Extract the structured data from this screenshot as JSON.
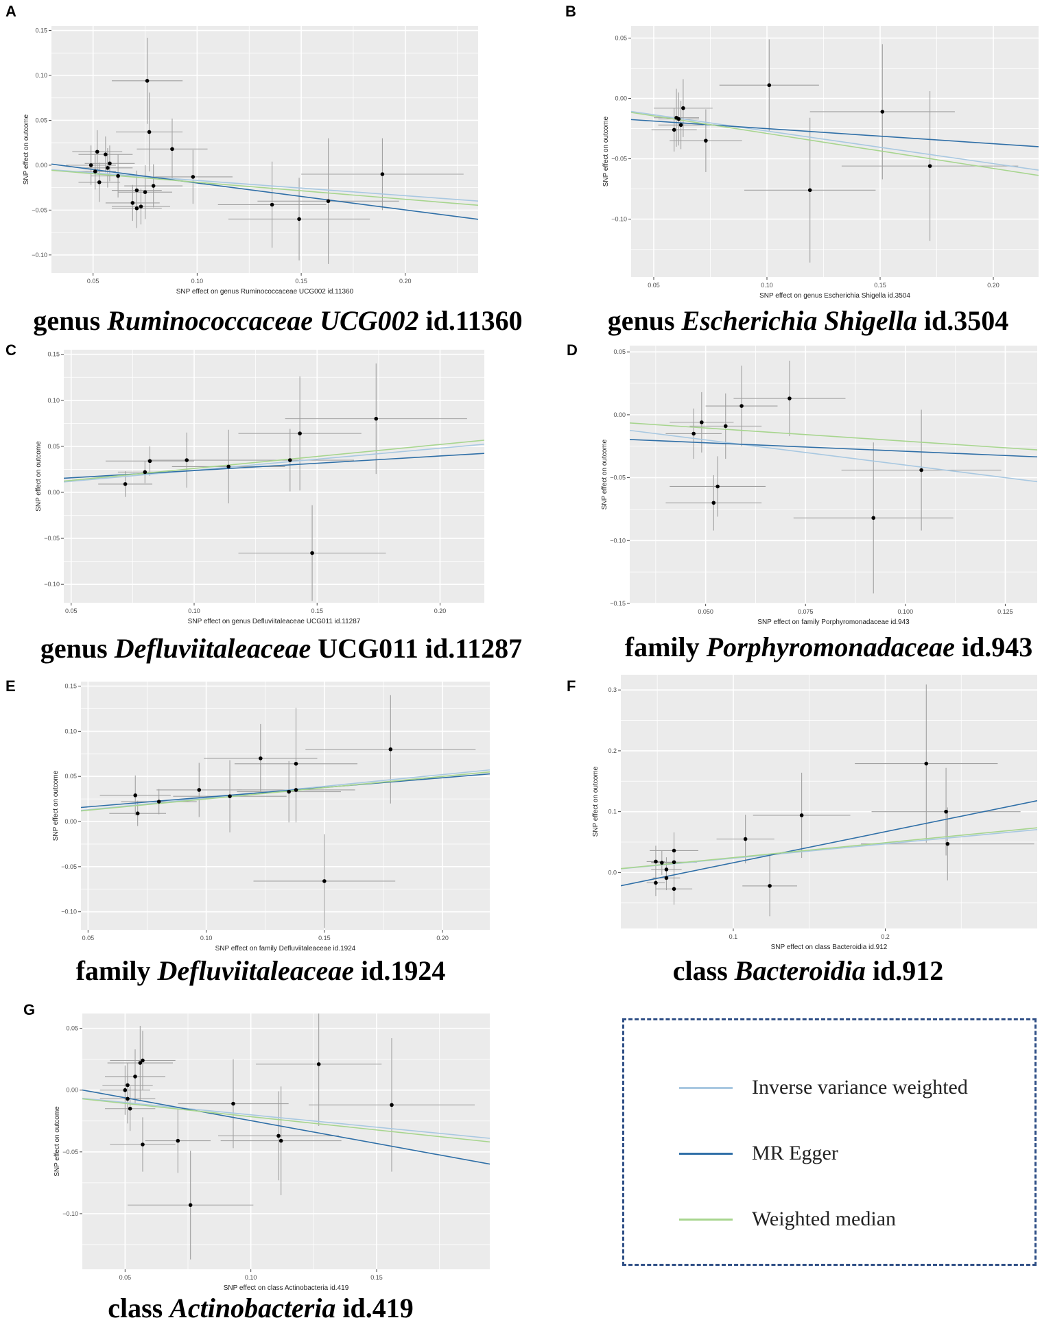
{
  "colors": {
    "ivw": "#a8c8e1",
    "egger": "#2f6fa7",
    "median": "#a7d58e",
    "panel_bg": "#ebebeb",
    "grid": "#ffffff",
    "legend_border": "#2f4f86"
  },
  "legend": {
    "items": [
      {
        "name": "Inverse variance weighted",
        "color_key": "ivw"
      },
      {
        "name": "MR Egger",
        "color_key": "egger"
      },
      {
        "name": "Weighted median",
        "color_key": "median"
      }
    ]
  },
  "chart_data": [
    {
      "id": "A",
      "type": "scatter",
      "caption": {
        "pre": "genus ",
        "ital": "Ruminococcaceae UCG002",
        "post": " id.11360"
      },
      "xlabel": "SNP effect on genus Ruminococcaceae UCG002 id.11360",
      "ylabel": "SNP effect on outcome",
      "xlim": [
        0.03,
        0.235
      ],
      "ylim": [
        -0.12,
        0.155
      ],
      "xticks": [
        0.05,
        0.1,
        0.15,
        0.2
      ],
      "xticklabels": [
        "0.05",
        "0.10",
        "0.15",
        "0.20"
      ],
      "yticks": [
        -0.1,
        -0.05,
        0.0,
        0.05,
        0.1,
        0.15
      ],
      "yticklabels": [
        "−0.10",
        "−0.05",
        "0.00",
        "0.05",
        "0.10",
        "0.15"
      ],
      "points": [
        {
          "x": 0.049,
          "y": 0.0,
          "xe": 0.012,
          "ye": 0.022
        },
        {
          "x": 0.051,
          "y": -0.007,
          "xe": 0.01,
          "ye": 0.02
        },
        {
          "x": 0.052,
          "y": 0.015,
          "xe": 0.012,
          "ye": 0.024
        },
        {
          "x": 0.053,
          "y": -0.019,
          "xe": 0.01,
          "ye": 0.022
        },
        {
          "x": 0.056,
          "y": 0.012,
          "xe": 0.013,
          "ye": 0.02
        },
        {
          "x": 0.057,
          "y": -0.003,
          "xe": 0.012,
          "ye": 0.022
        },
        {
          "x": 0.058,
          "y": 0.002,
          "xe": 0.012,
          "ye": 0.02
        },
        {
          "x": 0.062,
          "y": -0.012,
          "xe": 0.013,
          "ye": 0.024
        },
        {
          "x": 0.069,
          "y": -0.042,
          "xe": 0.013,
          "ye": 0.02
        },
        {
          "x": 0.071,
          "y": -0.028,
          "xe": 0.012,
          "ye": 0.022
        },
        {
          "x": 0.071,
          "y": -0.048,
          "xe": 0.012,
          "ye": 0.022
        },
        {
          "x": 0.073,
          "y": -0.046,
          "xe": 0.014,
          "ye": 0.02
        },
        {
          "x": 0.075,
          "y": -0.03,
          "xe": 0.013,
          "ye": 0.03
        },
        {
          "x": 0.076,
          "y": 0.094,
          "xe": 0.017,
          "ye": 0.048
        },
        {
          "x": 0.077,
          "y": 0.037,
          "xe": 0.016,
          "ye": 0.044
        },
        {
          "x": 0.079,
          "y": -0.023,
          "xe": 0.014,
          "ye": 0.024
        },
        {
          "x": 0.088,
          "y": 0.018,
          "xe": 0.017,
          "ye": 0.034
        },
        {
          "x": 0.098,
          "y": -0.013,
          "xe": 0.019,
          "ye": 0.03
        },
        {
          "x": 0.136,
          "y": -0.044,
          "xe": 0.026,
          "ye": 0.048
        },
        {
          "x": 0.149,
          "y": -0.06,
          "xe": 0.034,
          "ye": 0.046
        },
        {
          "x": 0.163,
          "y": -0.04,
          "xe": 0.034,
          "ye": 0.07
        },
        {
          "x": 0.189,
          "y": -0.01,
          "xe": 0.039,
          "ye": 0.04
        }
      ],
      "lines": [
        {
          "method": "ivw",
          "intercept": 0.0,
          "slope": -0.17
        },
        {
          "method": "egger",
          "intercept": 0.0102,
          "slope": -0.3
        },
        {
          "method": "median",
          "intercept": 0.0,
          "slope": -0.19
        }
      ]
    },
    {
      "id": "B",
      "type": "scatter",
      "caption": {
        "pre": "genus ",
        "ital": "Escherichia Shigella",
        "post": " id.3504"
      },
      "xlabel": "SNP effect on genus Escherichia Shigella id.3504",
      "ylabel": "SNP effect on outcome",
      "xlim": [
        0.04,
        0.22
      ],
      "ylim": [
        -0.148,
        0.06
      ],
      "xticks": [
        0.05,
        0.1,
        0.15,
        0.2
      ],
      "xticklabels": [
        "0.05",
        "0.10",
        "0.15",
        "0.20"
      ],
      "yticks": [
        -0.1,
        -0.05,
        0.0,
        0.05
      ],
      "yticklabels": [
        "−0.10",
        "−0.05",
        "0.00",
        "0.05"
      ],
      "points": [
        {
          "x": 0.059,
          "y": -0.026,
          "xe": 0.01,
          "ye": 0.018
        },
        {
          "x": 0.06,
          "y": -0.016,
          "xe": 0.01,
          "ye": 0.024
        },
        {
          "x": 0.061,
          "y": -0.017,
          "xe": 0.009,
          "ye": 0.022
        },
        {
          "x": 0.062,
          "y": -0.022,
          "xe": 0.01,
          "ye": 0.02
        },
        {
          "x": 0.063,
          "y": -0.008,
          "xe": 0.013,
          "ye": 0.024
        },
        {
          "x": 0.073,
          "y": -0.035,
          "xe": 0.016,
          "ye": 0.026
        },
        {
          "x": 0.101,
          "y": 0.011,
          "xe": 0.022,
          "ye": 0.038
        },
        {
          "x": 0.119,
          "y": -0.076,
          "xe": 0.029,
          "ye": 0.06
        },
        {
          "x": 0.151,
          "y": -0.011,
          "xe": 0.032,
          "ye": 0.056
        },
        {
          "x": 0.172,
          "y": -0.056,
          "xe": 0.039,
          "ye": 0.062
        }
      ],
      "lines": [
        {
          "method": "ivw",
          "intercept": 0.0,
          "slope": -0.27
        },
        {
          "method": "egger",
          "intercept": -0.0125,
          "slope": -0.125
        },
        {
          "method": "median",
          "intercept": 0.0,
          "slope": -0.29
        }
      ]
    },
    {
      "id": "C",
      "type": "scatter",
      "caption": {
        "pre": "genus ",
        "ital": "Defluviitaleaceae",
        "post": " UCG011 id.11287"
      },
      "xlabel": "SNP effect on genus Defluviitaleaceae UCG011 id.11287",
      "ylabel": "SNP effect on outcome",
      "xlim": [
        0.047,
        0.218
      ],
      "ylim": [
        -0.12,
        0.155
      ],
      "xticks": [
        0.05,
        0.1,
        0.15,
        0.2
      ],
      "xticklabels": [
        "0.05",
        "0.10",
        "0.15",
        "0.20"
      ],
      "yticks": [
        -0.1,
        -0.05,
        0.0,
        0.05,
        0.1,
        0.15
      ],
      "yticklabels": [
        "−0.10",
        "−0.05",
        "0.00",
        "0.05",
        "0.10",
        "0.15"
      ],
      "points": [
        {
          "x": 0.072,
          "y": 0.009,
          "xe": 0.011,
          "ye": 0.014
        },
        {
          "x": 0.08,
          "y": 0.022,
          "xe": 0.011,
          "ye": 0.012
        },
        {
          "x": 0.082,
          "y": 0.034,
          "xe": 0.018,
          "ye": 0.016
        },
        {
          "x": 0.097,
          "y": 0.035,
          "xe": 0.016,
          "ye": 0.03
        },
        {
          "x": 0.114,
          "y": 0.028,
          "xe": 0.023,
          "ye": 0.04
        },
        {
          "x": 0.139,
          "y": 0.035,
          "xe": 0.026,
          "ye": 0.034
        },
        {
          "x": 0.143,
          "y": 0.064,
          "xe": 0.025,
          "ye": 0.062
        },
        {
          "x": 0.148,
          "y": -0.066,
          "xe": 0.03,
          "ye": 0.052
        },
        {
          "x": 0.174,
          "y": 0.08,
          "xe": 0.037,
          "ye": 0.06
        }
      ],
      "lines": [
        {
          "method": "ivw",
          "intercept": 0.0,
          "slope": 0.24
        },
        {
          "method": "egger",
          "intercept": 0.0079,
          "slope": 0.158
        },
        {
          "method": "median",
          "intercept": 0.0,
          "slope": 0.26
        }
      ]
    },
    {
      "id": "D",
      "type": "scatter",
      "caption": {
        "pre": "family ",
        "ital": "Porphyromonadaceae",
        "post": " id.943"
      },
      "xlabel": "SNP effect on family Porphyromonadaceae id.943",
      "ylabel": "SNP effect on outcome",
      "xlim": [
        0.031,
        0.133
      ],
      "ylim": [
        -0.15,
        0.055
      ],
      "xticks": [
        0.05,
        0.075,
        0.1,
        0.125
      ],
      "xticklabels": [
        "0.050",
        "0.075",
        "0.100",
        "0.125"
      ],
      "yticks": [
        -0.15,
        -0.1,
        -0.05,
        0.0,
        0.05
      ],
      "yticklabels": [
        "−0.15",
        "−0.10",
        "−0.05",
        "0.00",
        "0.05"
      ],
      "points": [
        {
          "x": 0.047,
          "y": -0.015,
          "xe": 0.007,
          "ye": 0.02
        },
        {
          "x": 0.049,
          "y": -0.006,
          "xe": 0.008,
          "ye": 0.024
        },
        {
          "x": 0.052,
          "y": -0.07,
          "xe": 0.012,
          "ye": 0.022
        },
        {
          "x": 0.053,
          "y": -0.057,
          "xe": 0.012,
          "ye": 0.024
        },
        {
          "x": 0.055,
          "y": -0.009,
          "xe": 0.009,
          "ye": 0.026
        },
        {
          "x": 0.059,
          "y": 0.007,
          "xe": 0.009,
          "ye": 0.032
        },
        {
          "x": 0.071,
          "y": 0.013,
          "xe": 0.014,
          "ye": 0.03
        },
        {
          "x": 0.092,
          "y": -0.082,
          "xe": 0.02,
          "ye": 0.06
        },
        {
          "x": 0.104,
          "y": -0.044,
          "xe": 0.02,
          "ye": 0.048
        }
      ],
      "lines": [
        {
          "method": "ivw",
          "intercept": 0.0,
          "slope": -0.4
        },
        {
          "method": "egger",
          "intercept": -0.0155,
          "slope": -0.135
        },
        {
          "method": "median",
          "intercept": 0.0,
          "slope": -0.21
        }
      ]
    },
    {
      "id": "E",
      "type": "scatter",
      "caption": {
        "pre": "family ",
        "ital": "Defluviitaleaceae",
        "post": " id.1924"
      },
      "xlabel": "SNP effect on family Defluviitaleaceae id.1924",
      "ylabel": "SNP effect on outcome",
      "xlim": [
        0.047,
        0.22
      ],
      "ylim": [
        -0.12,
        0.155
      ],
      "xticks": [
        0.05,
        0.1,
        0.15,
        0.2
      ],
      "xticklabels": [
        "0.05",
        "0.10",
        "0.15",
        "0.20"
      ],
      "yticks": [
        -0.1,
        -0.05,
        0.0,
        0.05,
        0.1,
        0.15
      ],
      "yticklabels": [
        "−0.10",
        "−0.05",
        "0.00",
        "0.05",
        "0.10",
        "0.15"
      ],
      "points": [
        {
          "x": 0.07,
          "y": 0.029,
          "xe": 0.015,
          "ye": 0.022
        },
        {
          "x": 0.071,
          "y": 0.009,
          "xe": 0.012,
          "ye": 0.014
        },
        {
          "x": 0.08,
          "y": 0.022,
          "xe": 0.016,
          "ye": 0.014
        },
        {
          "x": 0.097,
          "y": 0.035,
          "xe": 0.018,
          "ye": 0.03
        },
        {
          "x": 0.11,
          "y": 0.028,
          "xe": 0.024,
          "ye": 0.04
        },
        {
          "x": 0.123,
          "y": 0.07,
          "xe": 0.024,
          "ye": 0.038
        },
        {
          "x": 0.135,
          "y": 0.033,
          "xe": 0.022,
          "ye": 0.034
        },
        {
          "x": 0.138,
          "y": 0.064,
          "xe": 0.026,
          "ye": 0.062
        },
        {
          "x": 0.138,
          "y": 0.035,
          "xe": 0.025,
          "ye": 0.036
        },
        {
          "x": 0.15,
          "y": -0.066,
          "xe": 0.03,
          "ye": 0.052
        },
        {
          "x": 0.178,
          "y": 0.08,
          "xe": 0.036,
          "ye": 0.06
        }
      ],
      "lines": [
        {
          "method": "ivw",
          "intercept": 0.0,
          "slope": 0.26
        },
        {
          "method": "egger",
          "intercept": 0.0055,
          "slope": 0.215
        },
        {
          "method": "median",
          "intercept": 0.0,
          "slope": 0.25
        }
      ]
    },
    {
      "id": "F",
      "type": "scatter",
      "caption": {
        "pre": "class ",
        "ital": "Bacteroidia",
        "post": " id.912"
      },
      "xlabel": "SNP effect on class Bacteroidia id.912",
      "ylabel": "SNP effect on outcome",
      "xlim": [
        0.026,
        0.3
      ],
      "ylim": [
        -0.092,
        0.325
      ],
      "xticks": [
        0.1,
        0.2
      ],
      "xticklabels": [
        "0.1",
        "0.2"
      ],
      "yticks": [
        0.0,
        0.1,
        0.2,
        0.3
      ],
      "yticklabels": [
        "0.0",
        "0.1",
        "0.2",
        "0.3"
      ],
      "points": [
        {
          "x": 0.049,
          "y": 0.018,
          "xe": 0.006,
          "ye": 0.026
        },
        {
          "x": 0.049,
          "y": -0.017,
          "xe": 0.006,
          "ye": 0.022
        },
        {
          "x": 0.053,
          "y": 0.016,
          "xe": 0.007,
          "ye": 0.02
        },
        {
          "x": 0.056,
          "y": 0.005,
          "xe": 0.01,
          "ye": 0.02
        },
        {
          "x": 0.056,
          "y": -0.009,
          "xe": 0.009,
          "ye": 0.02
        },
        {
          "x": 0.061,
          "y": 0.036,
          "xe": 0.016,
          "ye": 0.03
        },
        {
          "x": 0.061,
          "y": 0.017,
          "xe": 0.015,
          "ye": 0.02
        },
        {
          "x": 0.061,
          "y": -0.027,
          "xe": 0.012,
          "ye": 0.026
        },
        {
          "x": 0.108,
          "y": 0.055,
          "xe": 0.019,
          "ye": 0.04
        },
        {
          "x": 0.124,
          "y": -0.022,
          "xe": 0.018,
          "ye": 0.05
        },
        {
          "x": 0.145,
          "y": 0.094,
          "xe": 0.032,
          "ye": 0.07
        },
        {
          "x": 0.227,
          "y": 0.179,
          "xe": 0.047,
          "ye": 0.13
        },
        {
          "x": 0.24,
          "y": 0.1,
          "xe": 0.049,
          "ye": 0.072
        },
        {
          "x": 0.241,
          "y": 0.047,
          "xe": 0.057,
          "ye": 0.06
        }
      ],
      "lines": [
        {
          "method": "ivw",
          "intercept": 0.0,
          "slope": 0.235
        },
        {
          "method": "egger",
          "intercept": -0.035,
          "slope": 0.51
        },
        {
          "method": "median",
          "intercept": 0.0,
          "slope": 0.245
        }
      ]
    },
    {
      "id": "G",
      "type": "scatter",
      "caption": {
        "pre": "class ",
        "ital": "Actinobacteria",
        "post": " id.419"
      },
      "xlabel": "SNP effect on class Actinobacteria id.419",
      "ylabel": "SNP effect on outcome",
      "xlim": [
        0.033,
        0.195
      ],
      "ylim": [
        -0.145,
        0.062
      ],
      "xticks": [
        0.05,
        0.1,
        0.15
      ],
      "xticklabels": [
        "0.05",
        "0.10",
        "0.15"
      ],
      "yticks": [
        -0.1,
        -0.05,
        0.0,
        0.05
      ],
      "yticklabels": [
        "−0.10",
        "−0.05",
        "0.00",
        "0.05"
      ],
      "points": [
        {
          "x": 0.05,
          "y": 0.0,
          "xe": 0.01,
          "ye": 0.02
        },
        {
          "x": 0.051,
          "y": 0.004,
          "xe": 0.01,
          "ye": 0.018
        },
        {
          "x": 0.051,
          "y": -0.007,
          "xe": 0.011,
          "ye": 0.02
        },
        {
          "x": 0.052,
          "y": -0.015,
          "xe": 0.01,
          "ye": 0.018
        },
        {
          "x": 0.054,
          "y": 0.011,
          "xe": 0.012,
          "ye": 0.022
        },
        {
          "x": 0.056,
          "y": 0.022,
          "xe": 0.013,
          "ye": 0.03
        },
        {
          "x": 0.057,
          "y": 0.024,
          "xe": 0.013,
          "ye": 0.024
        },
        {
          "x": 0.057,
          "y": -0.044,
          "xe": 0.013,
          "ye": 0.022
        },
        {
          "x": 0.071,
          "y": -0.041,
          "xe": 0.013,
          "ye": 0.026
        },
        {
          "x": 0.076,
          "y": -0.093,
          "xe": 0.025,
          "ye": 0.044
        },
        {
          "x": 0.093,
          "y": -0.011,
          "xe": 0.022,
          "ye": 0.036
        },
        {
          "x": 0.111,
          "y": -0.037,
          "xe": 0.024,
          "ye": 0.036
        },
        {
          "x": 0.112,
          "y": -0.041,
          "xe": 0.024,
          "ye": 0.044
        },
        {
          "x": 0.127,
          "y": 0.021,
          "xe": 0.025,
          "ye": 0.05
        },
        {
          "x": 0.156,
          "y": -0.012,
          "xe": 0.033,
          "ye": 0.054
        }
      ],
      "lines": [
        {
          "method": "ivw",
          "intercept": 0.0,
          "slope": -0.2
        },
        {
          "method": "egger",
          "intercept": 0.0123,
          "slope": -0.37
        },
        {
          "method": "median",
          "intercept": 0.0,
          "slope": -0.215
        }
      ]
    }
  ]
}
